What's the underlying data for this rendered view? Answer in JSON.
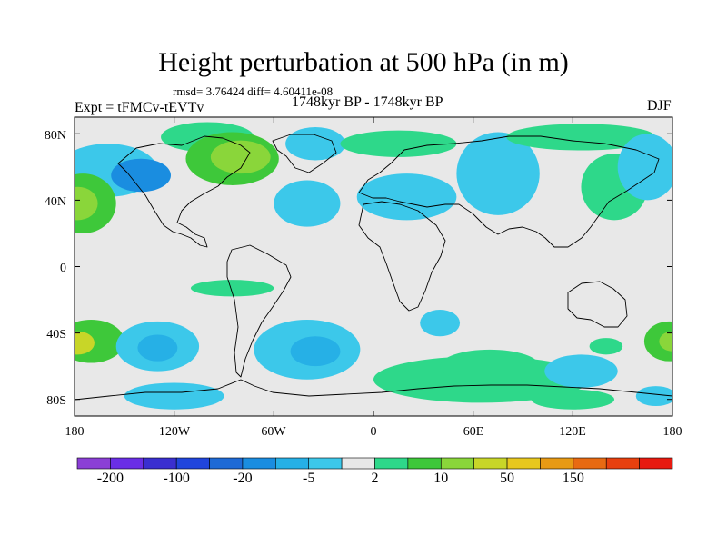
{
  "title": "Height perturbation at 500 hPa (in m)",
  "stats": "rmsd= 3.76424 diff= 4.60411e-08",
  "experiment": "Expt = tFMCv-tEVTv",
  "period": "1748kyr BP - 1748kyr BP",
  "season": "DJF",
  "map": {
    "projection": "cylindrical-equidistant",
    "lon_range": [
      -180,
      180
    ],
    "lat_range": [
      -90,
      90
    ],
    "y_ticks": [
      {
        "label": "80N",
        "lat": 80
      },
      {
        "label": "40N",
        "lat": 40
      },
      {
        "label": "0",
        "lat": 0
      },
      {
        "label": "40S",
        "lat": -40
      },
      {
        "label": "80S",
        "lat": -80
      }
    ],
    "x_ticks": [
      {
        "label": "180",
        "lon": -180
      },
      {
        "label": "120W",
        "lon": -120
      },
      {
        "label": "60W",
        "lon": -60
      },
      {
        "label": "0",
        "lon": 0
      },
      {
        "label": "60E",
        "lon": 60
      },
      {
        "label": "120E",
        "lon": 120
      },
      {
        "label": "180",
        "lon": 180
      }
    ],
    "background_color": "#e8e8e8",
    "coastline_color": "#000000"
  },
  "colorbar": {
    "colors": [
      "#8b3fd6",
      "#6a2ee6",
      "#3a2fd0",
      "#2045dc",
      "#1e6ad6",
      "#1a8de0",
      "#26b0e6",
      "#3cc8ea",
      "#e8e8e8",
      "#2ed88a",
      "#3ec83a",
      "#8ad63a",
      "#c8d628",
      "#e8c81e",
      "#e89a14",
      "#e86a12",
      "#e8400e",
      "#e81a10"
    ],
    "labels": [
      {
        "text": "-200",
        "boundary": 1
      },
      {
        "text": "-100",
        "boundary": 3
      },
      {
        "text": "-20",
        "boundary": 5
      },
      {
        "text": "-5",
        "boundary": 7
      },
      {
        "text": "2",
        "boundary": 9
      },
      {
        "text": "10",
        "boundary": 11
      },
      {
        "text": "50",
        "boundary": 13
      },
      {
        "text": "150",
        "boundary": 15
      }
    ]
  },
  "field_regions": [
    {
      "lon": -160,
      "lat": 58,
      "rx": 30,
      "ry": 16,
      "level": 7
    },
    {
      "lon": -140,
      "lat": 55,
      "rx": 18,
      "ry": 10,
      "level": 5
    },
    {
      "lon": -175,
      "lat": 38,
      "rx": 20,
      "ry": 18,
      "level": 10
    },
    {
      "lon": -178,
      "lat": 38,
      "rx": 12,
      "ry": 10,
      "level": 11
    },
    {
      "lon": -100,
      "lat": 78,
      "rx": 28,
      "ry": 9,
      "level": 9
    },
    {
      "lon": -85,
      "lat": 65,
      "rx": 28,
      "ry": 16,
      "level": 10
    },
    {
      "lon": -80,
      "lat": 66,
      "rx": 18,
      "ry": 10,
      "level": 11
    },
    {
      "lon": -40,
      "lat": 38,
      "rx": 20,
      "ry": 14,
      "level": 7
    },
    {
      "lon": -35,
      "lat": 74,
      "rx": 18,
      "ry": 10,
      "level": 7
    },
    {
      "lon": 15,
      "lat": 74,
      "rx": 35,
      "ry": 8,
      "level": 9
    },
    {
      "lon": 20,
      "lat": 42,
      "rx": 30,
      "ry": 14,
      "level": 7
    },
    {
      "lon": 75,
      "lat": 56,
      "rx": 25,
      "ry": 25,
      "level": 7
    },
    {
      "lon": 125,
      "lat": 78,
      "rx": 45,
      "ry": 8,
      "level": 9
    },
    {
      "lon": 145,
      "lat": 48,
      "rx": 20,
      "ry": 20,
      "level": 9
    },
    {
      "lon": 165,
      "lat": 60,
      "rx": 18,
      "ry": 20,
      "level": 7
    },
    {
      "lon": -85,
      "lat": -13,
      "rx": 25,
      "ry": 5,
      "level": 9
    },
    {
      "lon": -170,
      "lat": -45,
      "rx": 20,
      "ry": 13,
      "level": 10
    },
    {
      "lon": -178,
      "lat": -46,
      "rx": 10,
      "ry": 7,
      "level": 12
    },
    {
      "lon": -130,
      "lat": -48,
      "rx": 25,
      "ry": 15,
      "level": 7
    },
    {
      "lon": -130,
      "lat": -49,
      "rx": 12,
      "ry": 8,
      "level": 6
    },
    {
      "lon": -40,
      "lat": -50,
      "rx": 32,
      "ry": 18,
      "level": 7
    },
    {
      "lon": -35,
      "lat": -51,
      "rx": 15,
      "ry": 9,
      "level": 6
    },
    {
      "lon": 65,
      "lat": -68,
      "rx": 65,
      "ry": 14,
      "level": 9
    },
    {
      "lon": 70,
      "lat": -60,
      "rx": 30,
      "ry": 10,
      "level": 9
    },
    {
      "lon": 140,
      "lat": -48,
      "rx": 10,
      "ry": 5,
      "level": 9
    },
    {
      "lon": 125,
      "lat": -63,
      "rx": 22,
      "ry": 10,
      "level": 7
    },
    {
      "lon": 178,
      "lat": -45,
      "rx": 15,
      "ry": 12,
      "level": 10
    },
    {
      "lon": 180,
      "lat": -45,
      "rx": 8,
      "ry": 6,
      "level": 11
    },
    {
      "lon": 40,
      "lat": -34,
      "rx": 12,
      "ry": 8,
      "level": 7
    },
    {
      "lon": -120,
      "lat": -78,
      "rx": 30,
      "ry": 8,
      "level": 7
    },
    {
      "lon": 120,
      "lat": -80,
      "rx": 25,
      "ry": 6,
      "level": 9
    },
    {
      "lon": 170,
      "lat": -78,
      "rx": 12,
      "ry": 6,
      "level": 7
    }
  ]
}
